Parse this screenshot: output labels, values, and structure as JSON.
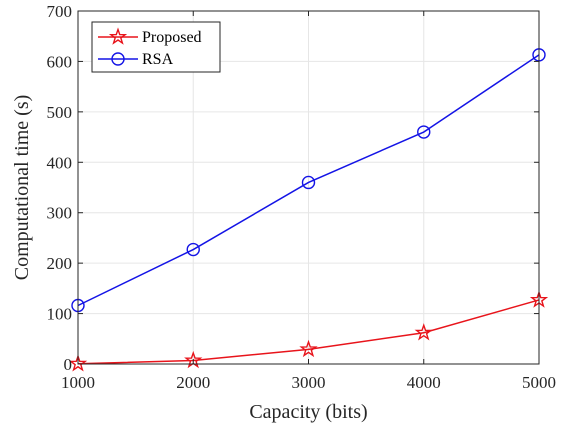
{
  "chart_data": {
    "type": "line",
    "xlabel": "Capacity (bits)",
    "ylabel": "Computational time (s)",
    "x": [
      1000,
      2000,
      3000,
      4000,
      5000
    ],
    "xlim": [
      1000,
      5000
    ],
    "ylim": [
      0,
      700
    ],
    "xticks": [
      1000,
      2000,
      3000,
      4000,
      5000
    ],
    "yticks": [
      0,
      100,
      200,
      300,
      400,
      500,
      600,
      700
    ],
    "grid": true,
    "legend_position": "top-left",
    "series": [
      {
        "name": "Proposed",
        "color": "#e8141b",
        "marker": "star",
        "values": [
          0.5,
          7,
          29,
          62,
          127
        ]
      },
      {
        "name": "RSA",
        "color": "#1414e6",
        "marker": "circle",
        "values": [
          116,
          227,
          360,
          460,
          613
        ]
      }
    ]
  }
}
